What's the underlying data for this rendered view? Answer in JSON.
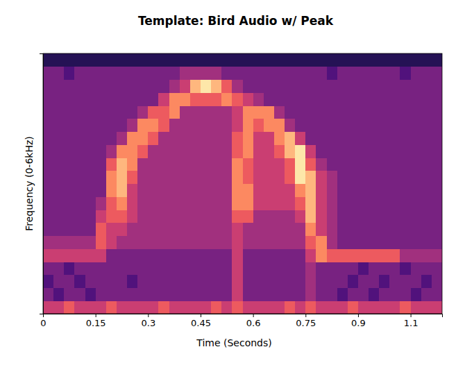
{
  "chart_data": {
    "type": "heatmap",
    "title": "Template: Bird Audio w/ Peak",
    "x_label": "Time (Seconds)",
    "y_label": "Frequency (0-6kHz)",
    "xlim": [
      0,
      1.14
    ],
    "ylim": [
      0,
      6
    ],
    "xticks": [
      0,
      0.15,
      0.3,
      0.45,
      0.6,
      0.75,
      0.9,
      {
        "value": 1.05,
        "label": "1.1"
      }
    ],
    "yticks": [],
    "tick_labels": "x",
    "grid": false,
    "x_bins": [
      0,
      0.03,
      0.06,
      0.09,
      0.12,
      0.15,
      0.18,
      0.21,
      0.24,
      0.27,
      0.3,
      0.33,
      0.36,
      0.39,
      0.42,
      0.45,
      0.48,
      0.51,
      0.54,
      0.57,
      0.6,
      0.63,
      0.66,
      0.69,
      0.72,
      0.75,
      0.78,
      0.81,
      0.84,
      0.87,
      0.9,
      0.93,
      0.96,
      0.99,
      1.02,
      1.05,
      1.08,
      1.11,
      1.14
    ],
    "y_bins": [
      0,
      0.3,
      0.6,
      0.9,
      1.2,
      1.5,
      1.8,
      2.1,
      2.4,
      2.7,
      3.0,
      3.3,
      3.6,
      3.9,
      4.2,
      4.5,
      4.8,
      5.1,
      5.4,
      5.7,
      6.0
    ],
    "cells": [
      [
        5,
        5,
        6,
        5,
        5,
        5,
        6,
        5,
        5,
        5,
        5,
        6,
        5,
        5,
        5,
        5,
        6,
        5,
        6,
        5,
        5,
        5,
        5,
        6,
        5,
        6,
        5,
        5,
        5,
        6,
        5,
        5,
        5,
        5,
        6,
        5,
        5,
        5
      ],
      [
        3,
        2,
        3,
        3,
        2,
        3,
        3,
        3,
        3,
        3,
        3,
        3,
        3,
        3,
        3,
        3,
        3,
        3,
        5,
        3,
        3,
        3,
        3,
        3,
        3,
        4,
        3,
        3,
        2,
        3,
        3,
        2,
        3,
        3,
        3,
        2,
        3,
        3
      ],
      [
        2,
        3,
        3,
        2,
        3,
        3,
        3,
        3,
        2,
        3,
        3,
        3,
        3,
        3,
        3,
        3,
        3,
        3,
        5,
        3,
        3,
        3,
        3,
        3,
        3,
        4,
        3,
        3,
        3,
        2,
        3,
        3,
        2,
        3,
        3,
        3,
        2,
        3
      ],
      [
        3,
        3,
        2,
        3,
        3,
        3,
        3,
        3,
        3,
        3,
        3,
        3,
        3,
        3,
        3,
        3,
        3,
        3,
        5,
        3,
        3,
        3,
        3,
        3,
        3,
        4,
        3,
        3,
        3,
        3,
        2,
        3,
        3,
        3,
        2,
        3,
        3,
        3
      ],
      [
        5,
        5,
        5,
        5,
        5,
        5,
        3,
        3,
        3,
        3,
        3,
        3,
        3,
        3,
        3,
        3,
        3,
        3,
        5,
        3,
        3,
        3,
        3,
        3,
        3,
        5,
        7,
        6,
        6,
        6,
        6,
        6,
        6,
        6,
        4,
        4,
        4,
        4
      ],
      [
        4,
        4,
        4,
        4,
        4,
        6,
        5,
        4,
        4,
        4,
        4,
        4,
        4,
        4,
        4,
        4,
        4,
        4,
        5,
        4,
        4,
        4,
        4,
        4,
        4,
        6,
        7,
        4,
        3,
        3,
        3,
        3,
        3,
        3,
        3,
        3,
        3,
        3
      ],
      [
        3,
        3,
        3,
        3,
        3,
        6,
        5,
        5,
        4,
        4,
        4,
        4,
        4,
        4,
        4,
        4,
        4,
        4,
        5,
        4,
        4,
        4,
        4,
        4,
        4,
        7,
        5,
        4,
        3,
        3,
        3,
        3,
        3,
        3,
        3,
        3,
        3,
        3
      ],
      [
        3,
        3,
        3,
        3,
        3,
        5,
        6,
        6,
        5,
        4,
        4,
        4,
        4,
        4,
        4,
        4,
        4,
        4,
        6,
        6,
        4,
        4,
        4,
        4,
        5,
        8,
        5,
        4,
        3,
        3,
        3,
        3,
        3,
        3,
        3,
        3,
        3,
        3
      ],
      [
        3,
        3,
        3,
        3,
        3,
        4,
        6,
        7,
        5,
        4,
        4,
        4,
        4,
        4,
        4,
        4,
        4,
        4,
        7,
        7,
        5,
        5,
        5,
        5,
        6,
        8,
        5,
        4,
        3,
        3,
        3,
        3,
        3,
        3,
        3,
        3,
        3,
        3
      ],
      [
        3,
        3,
        3,
        3,
        3,
        3,
        7,
        8,
        5,
        4,
        4,
        4,
        4,
        4,
        4,
        4,
        4,
        4,
        7,
        7,
        5,
        5,
        5,
        5,
        7,
        8,
        5,
        4,
        3,
        3,
        3,
        3,
        3,
        3,
        3,
        3,
        3,
        3
      ],
      [
        3,
        3,
        3,
        3,
        3,
        3,
        7,
        8,
        6,
        4,
        4,
        4,
        4,
        4,
        4,
        4,
        4,
        4,
        7,
        6,
        5,
        5,
        5,
        6,
        9,
        8,
        5,
        4,
        3,
        3,
        3,
        3,
        3,
        3,
        3,
        3,
        3,
        3
      ],
      [
        3,
        3,
        3,
        3,
        3,
        3,
        6,
        8,
        7,
        4,
        4,
        4,
        4,
        4,
        4,
        4,
        4,
        4,
        7,
        6,
        5,
        5,
        5,
        6,
        9,
        6,
        4,
        3,
        3,
        3,
        3,
        3,
        3,
        3,
        3,
        3,
        3,
        3
      ],
      [
        3,
        3,
        3,
        3,
        3,
        3,
        4,
        7,
        7,
        6,
        4,
        4,
        4,
        4,
        4,
        4,
        4,
        4,
        6,
        7,
        5,
        5,
        6,
        8,
        9,
        5,
        3,
        3,
        3,
        3,
        3,
        3,
        3,
        3,
        3,
        3,
        3,
        3
      ],
      [
        3,
        3,
        3,
        3,
        3,
        3,
        3,
        4,
        7,
        7,
        6,
        4,
        4,
        4,
        4,
        4,
        4,
        4,
        6,
        7,
        5,
        5,
        7,
        8,
        5,
        3,
        3,
        3,
        3,
        3,
        3,
        3,
        3,
        3,
        3,
        3,
        3,
        3
      ],
      [
        3,
        3,
        3,
        3,
        3,
        3,
        3,
        3,
        4,
        7,
        7,
        6,
        4,
        4,
        4,
        4,
        4,
        4,
        5,
        7,
        6,
        7,
        7,
        4,
        3,
        3,
        3,
        3,
        3,
        3,
        3,
        3,
        3,
        3,
        3,
        3,
        3,
        3
      ],
      [
        3,
        3,
        3,
        3,
        3,
        3,
        3,
        3,
        3,
        4,
        6,
        6,
        7,
        4,
        4,
        4,
        4,
        4,
        5,
        7,
        7,
        7,
        4,
        3,
        3,
        3,
        3,
        3,
        3,
        3,
        3,
        3,
        3,
        3,
        3,
        3,
        3,
        3
      ],
      [
        3,
        3,
        3,
        3,
        3,
        3,
        3,
        3,
        3,
        3,
        3,
        5,
        7,
        7,
        6,
        6,
        6,
        7,
        6,
        5,
        4,
        3,
        3,
        3,
        3,
        3,
        3,
        3,
        3,
        3,
        3,
        3,
        3,
        3,
        3,
        3,
        3,
        3
      ],
      [
        3,
        3,
        3,
        3,
        3,
        3,
        3,
        3,
        3,
        3,
        3,
        3,
        4,
        5,
        8,
        9,
        8,
        6,
        4,
        3,
        3,
        3,
        3,
        3,
        3,
        3,
        3,
        3,
        3,
        3,
        3,
        3,
        3,
        3,
        3,
        3,
        3,
        3
      ],
      [
        3,
        3,
        2,
        3,
        3,
        3,
        3,
        3,
        3,
        3,
        3,
        3,
        3,
        4,
        4,
        4,
        4,
        3,
        3,
        3,
        3,
        3,
        3,
        3,
        3,
        3,
        3,
        2,
        3,
        3,
        3,
        3,
        3,
        3,
        2,
        3,
        3,
        3
      ],
      [
        1,
        1,
        1,
        1,
        1,
        1,
        1,
        1,
        1,
        1,
        1,
        1,
        1,
        1,
        1,
        1,
        1,
        1,
        1,
        1,
        1,
        1,
        1,
        1,
        1,
        1,
        1,
        1,
        1,
        1,
        1,
        1,
        1,
        1,
        1,
        1,
        1,
        1
      ]
    ]
  }
}
